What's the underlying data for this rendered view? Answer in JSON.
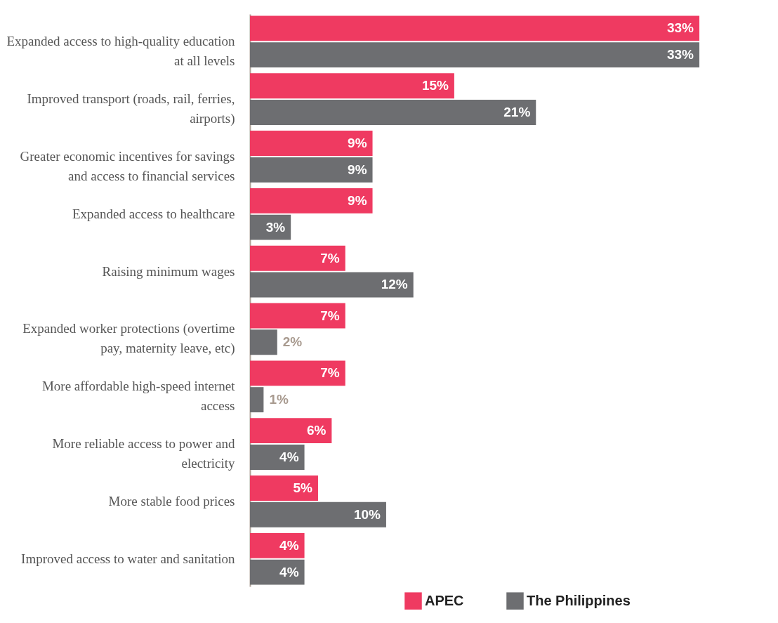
{
  "chart_data": {
    "type": "bar",
    "orientation": "horizontal",
    "legend": "bottom right",
    "categories": [
      "Expanded access to high-quality education at all levels",
      "Improved transport (roads, rail, ferries, airports)",
      "Greater economic incentives for savings and access to financial services",
      "Expanded access to healthcare",
      "Raising minimum wages",
      "Expanded worker protections (overtime pay, maternity leave, etc)",
      "More affordable high-speed internet access",
      "More reliable access to power and electricity",
      "More stable food prices",
      "Improved access to water and sanitation"
    ],
    "series": [
      {
        "name": "APEC",
        "color": "#ef3a61",
        "values": [
          33,
          15,
          9,
          9,
          7,
          7,
          7,
          6,
          5,
          4
        ],
        "value_labels": [
          "33%",
          "15%",
          "9%",
          "9%",
          "7%",
          "7%",
          "7%",
          "6%",
          "5%",
          "4%"
        ]
      },
      {
        "name": "The Philippines",
        "color": "#6d6e71",
        "values": [
          33,
          21,
          9,
          3,
          12,
          2,
          1,
          4,
          10,
          4
        ],
        "value_labels": [
          "33%",
          "21%",
          "9%",
          "3%",
          "12%",
          "2%",
          "1%",
          "4%",
          "10%",
          "4%"
        ]
      }
    ]
  }
}
